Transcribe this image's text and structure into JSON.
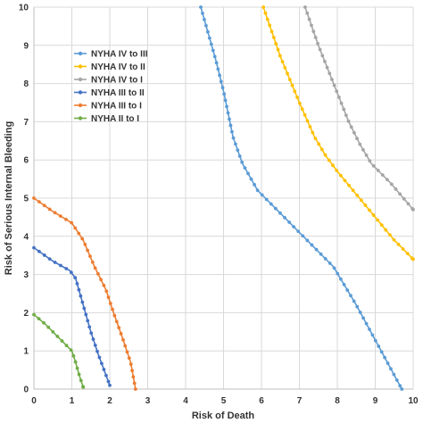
{
  "chart_data": {
    "type": "line",
    "title": "",
    "xlabel": "Risk of Death",
    "ylabel": "Risk of Serious Internal Bleeding",
    "xlim": [
      0,
      10
    ],
    "ylim": [
      0,
      10
    ],
    "xticks": [
      "0",
      "1",
      "2",
      "3",
      "4",
      "5",
      "6",
      "7",
      "8",
      "9",
      "10"
    ],
    "yticks": [
      "0",
      "1",
      "2",
      "3",
      "4",
      "5",
      "6",
      "7",
      "8",
      "9",
      "10"
    ],
    "grid": true,
    "legend": "upper-left",
    "series": [
      {
        "name": "NYHA IV to III",
        "color": "#5b9bd5",
        "points": [
          [
            4.4,
            10
          ],
          [
            4.8,
            8.6
          ],
          [
            5.0,
            7.8
          ],
          [
            5.25,
            6.6
          ],
          [
            5.5,
            5.9
          ],
          [
            5.9,
            5.2
          ],
          [
            6.5,
            4.6
          ],
          [
            7.2,
            3.9
          ],
          [
            7.9,
            3.2
          ],
          [
            8.5,
            2.2
          ],
          [
            9.1,
            1.1
          ],
          [
            9.7,
            0
          ]
        ]
      },
      {
        "name": "NYHA IV to II",
        "color": "#ffc000",
        "points": [
          [
            6.05,
            10
          ],
          [
            6.5,
            8.7
          ],
          [
            7.0,
            7.5
          ],
          [
            7.4,
            6.6
          ],
          [
            7.7,
            6.1
          ],
          [
            8.0,
            5.7
          ],
          [
            8.5,
            5.1
          ],
          [
            9.0,
            4.5
          ],
          [
            9.5,
            3.9
          ],
          [
            10.0,
            3.4
          ]
        ]
      },
      {
        "name": "NYHA IV to I",
        "color": "#a5a5a5",
        "points": [
          [
            7.15,
            10
          ],
          [
            7.5,
            9.0
          ],
          [
            7.9,
            8.0
          ],
          [
            8.3,
            7.0
          ],
          [
            8.6,
            6.4
          ],
          [
            8.9,
            5.9
          ],
          [
            9.4,
            5.4
          ],
          [
            10.0,
            4.7
          ]
        ]
      },
      {
        "name": "NYHA III to II",
        "color": "#4472c4",
        "points": [
          [
            0.0,
            3.7
          ],
          [
            0.5,
            3.35
          ],
          [
            0.95,
            3.1
          ],
          [
            1.1,
            2.9
          ],
          [
            1.3,
            2.2
          ],
          [
            1.5,
            1.5
          ],
          [
            1.7,
            0.9
          ],
          [
            1.85,
            0.5
          ],
          [
            2.0,
            0.1
          ]
        ]
      },
      {
        "name": "NYHA III to I",
        "color": "#ed7d31",
        "points": [
          [
            0.0,
            5.0
          ],
          [
            0.5,
            4.65
          ],
          [
            1.0,
            4.35
          ],
          [
            1.3,
            3.9
          ],
          [
            1.6,
            3.2
          ],
          [
            1.9,
            2.6
          ],
          [
            2.1,
            2.0
          ],
          [
            2.35,
            1.3
          ],
          [
            2.55,
            0.7
          ],
          [
            2.68,
            0.0
          ]
        ]
      },
      {
        "name": "NYHA II to I",
        "color": "#70ad47",
        "points": [
          [
            0.0,
            1.95
          ],
          [
            0.3,
            1.7
          ],
          [
            0.6,
            1.4
          ],
          [
            1.0,
            1.0
          ],
          [
            1.1,
            0.7
          ],
          [
            1.2,
            0.35
          ],
          [
            1.3,
            0.05
          ]
        ]
      }
    ]
  }
}
